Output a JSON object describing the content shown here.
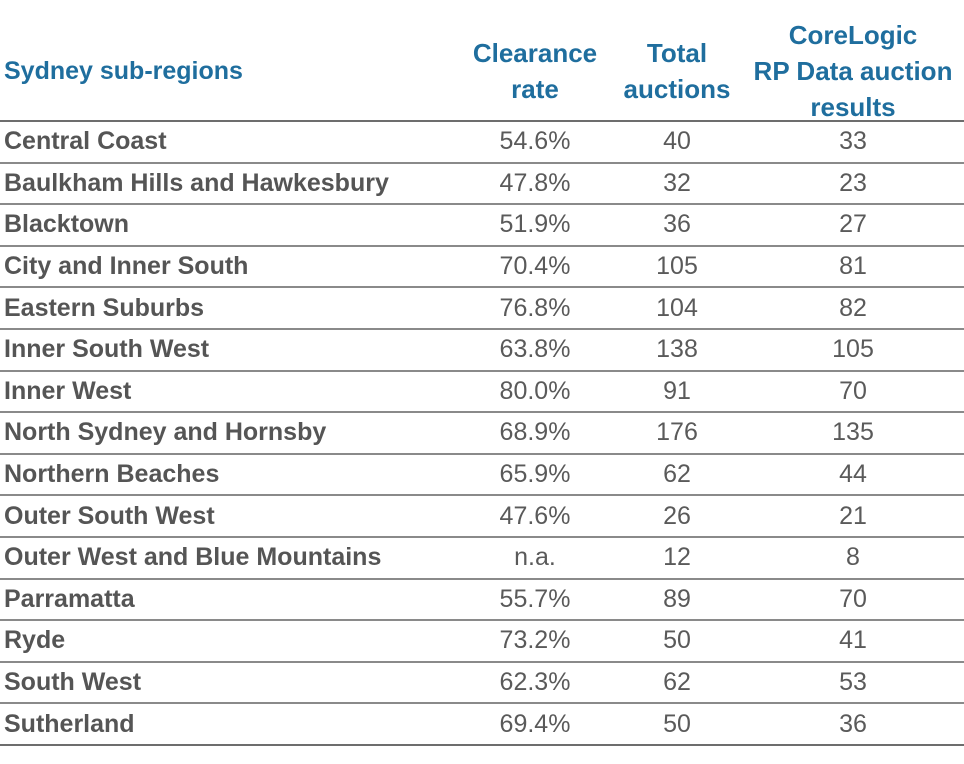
{
  "table": {
    "headers": {
      "region": "Sydney sub-regions",
      "clearance_line1": "Clearance",
      "clearance_line2": "rate",
      "total_line1": "Total",
      "total_line2": "auctions",
      "corelogic_line1": "CoreLogic",
      "corelogic_line2": "RP Data auction",
      "corelogic_line3": "results"
    },
    "rows": [
      {
        "region": "Central Coast",
        "clearance": "54.6%",
        "total": "40",
        "corelogic": "33"
      },
      {
        "region": "Baulkham Hills and Hawkesbury",
        "clearance": "47.8%",
        "total": "32",
        "corelogic": "23"
      },
      {
        "region": "Blacktown",
        "clearance": "51.9%",
        "total": "36",
        "corelogic": "27"
      },
      {
        "region": "City and Inner South",
        "clearance": "70.4%",
        "total": "105",
        "corelogic": "81"
      },
      {
        "region": "Eastern Suburbs",
        "clearance": "76.8%",
        "total": "104",
        "corelogic": "82"
      },
      {
        "region": "Inner South West",
        "clearance": "63.8%",
        "total": "138",
        "corelogic": "105"
      },
      {
        "region": "Inner West",
        "clearance": "80.0%",
        "total": "91",
        "corelogic": "70"
      },
      {
        "region": "North Sydney and Hornsby",
        "clearance": "68.9%",
        "total": "176",
        "corelogic": "135"
      },
      {
        "region": "Northern Beaches",
        "clearance": "65.9%",
        "total": "62",
        "corelogic": "44"
      },
      {
        "region": "Outer South West",
        "clearance": "47.6%",
        "total": "26",
        "corelogic": "21"
      },
      {
        "region": "Outer West and Blue Mountains",
        "clearance": "n.a.",
        "total": "12",
        "corelogic": "8"
      },
      {
        "region": "Parramatta",
        "clearance": "55.7%",
        "total": "89",
        "corelogic": "70"
      },
      {
        "region": "Ryde",
        "clearance": "73.2%",
        "total": "50",
        "corelogic": "41"
      },
      {
        "region": "South West",
        "clearance": "62.3%",
        "total": "62",
        "corelogic": "53"
      },
      {
        "region": "Sutherland",
        "clearance": "69.4%",
        "total": "50",
        "corelogic": "36"
      }
    ]
  },
  "colors": {
    "header_text": "#1f6e9e",
    "body_text": "#5a5a5a",
    "rule": "#8a8a8a"
  }
}
